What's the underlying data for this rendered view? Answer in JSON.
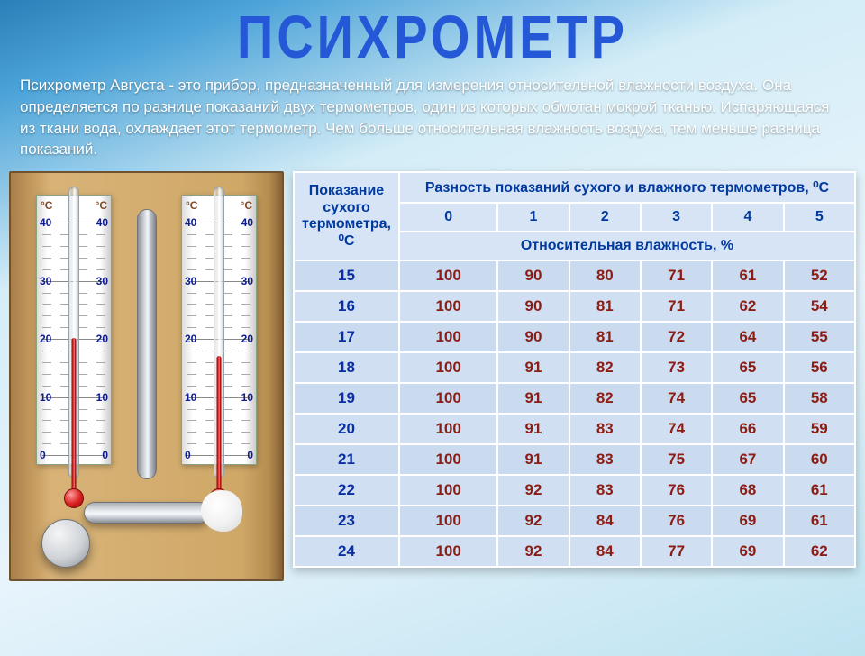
{
  "title": "ПСИХРОМЕТР",
  "description": "Психрометр Августа - это прибор, предназначенный для измерения относительной влажности воздуха. Она определяется по разнице показаний двух термометров, один из которых обмотан мокрой тканью. Испаряющаяся из ткани вода, охлаждает этот термометр. Чем больше относительная влажность воздуха, тем меньше разница показаний.",
  "thermometer": {
    "unit": "°C",
    "scale_labels": [
      0,
      10,
      20,
      30,
      40
    ],
    "dry_reading_c": 20,
    "wet_reading_c": 17,
    "scale_color": "#0f1c8f",
    "mercury_color": "#d82020",
    "plate_bg": "#ffffff",
    "wood_bg": "#cfa867"
  },
  "table": {
    "row_header_html": "Показание<br>сухого<br>термометра,<br>⁰C",
    "col_header": "Разность показаний сухого и влажного термометров, ⁰C",
    "sub_header": "Относительная влажность, %",
    "diffs": [
      0,
      1,
      2,
      3,
      4,
      5
    ],
    "rows": [
      {
        "t": 15,
        "v": [
          100,
          90,
          80,
          71,
          61,
          52
        ]
      },
      {
        "t": 16,
        "v": [
          100,
          90,
          81,
          71,
          62,
          54
        ]
      },
      {
        "t": 17,
        "v": [
          100,
          90,
          81,
          72,
          64,
          55
        ]
      },
      {
        "t": 18,
        "v": [
          100,
          91,
          82,
          73,
          65,
          56
        ]
      },
      {
        "t": 19,
        "v": [
          100,
          91,
          82,
          74,
          65,
          58
        ]
      },
      {
        "t": 20,
        "v": [
          100,
          91,
          83,
          74,
          66,
          59
        ]
      },
      {
        "t": 21,
        "v": [
          100,
          91,
          83,
          75,
          67,
          60
        ]
      },
      {
        "t": 22,
        "v": [
          100,
          92,
          83,
          76,
          68,
          61
        ]
      },
      {
        "t": 23,
        "v": [
          100,
          92,
          84,
          76,
          69,
          61
        ]
      },
      {
        "t": 24,
        "v": [
          100,
          92,
          84,
          77,
          69,
          62
        ]
      }
    ],
    "header_text_color": "#013a9e",
    "key_text_color": "#0a2fa2",
    "value_text_color": "#8c1d14",
    "cell_bg": "#d0dff2",
    "cell_bg_alt": "#cadaef",
    "border_color": "#ffffff"
  },
  "colors": {
    "title": "#2458d6",
    "desc": "#ffffff",
    "bg_top": "#2b7fb8",
    "bg_bottom": "#bde3f0"
  },
  "typography": {
    "title_fontsize_pt": 42,
    "desc_fontsize_pt": 13,
    "table_fontsize_pt": 13
  }
}
